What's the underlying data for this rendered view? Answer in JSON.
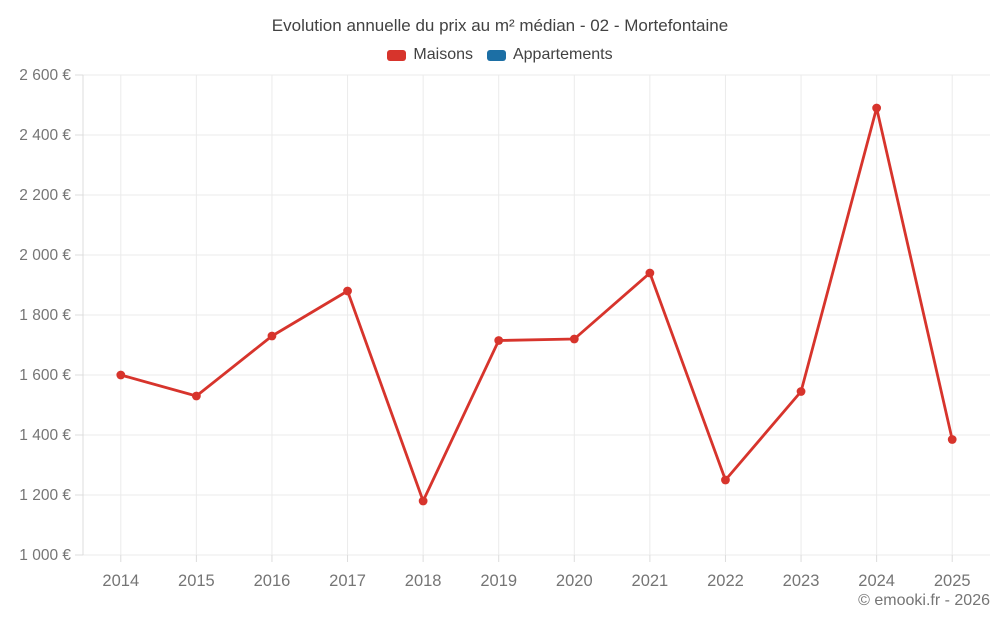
{
  "header": {
    "title": "Evolution annuelle du prix au m² médian - 02 - Mortefontaine"
  },
  "legend": {
    "items": [
      {
        "label": "Maisons",
        "color": "#d7342c"
      },
      {
        "label": "Appartements",
        "color": "#1c6fa5"
      }
    ]
  },
  "footer": {
    "credit": "© emooki.fr - 2026"
  },
  "colors": {
    "maisons": "#d7342c",
    "appartements": "#1c6fa5",
    "grid": "#ebebeb",
    "axis": "#dcdcdc",
    "tick_text": "#757575",
    "title_text": "#424242"
  },
  "chart_data": {
    "type": "line",
    "title": "Evolution annuelle du prix au m² médian - 02 - Mortefontaine",
    "categories": [
      "2014",
      "2015",
      "2016",
      "2017",
      "2018",
      "2019",
      "2020",
      "2021",
      "2022",
      "2023",
      "2024",
      "2025"
    ],
    "series": [
      {
        "name": "Maisons",
        "color": "#d7342c",
        "values": [
          1600,
          1530,
          1730,
          1880,
          1180,
          1715,
          1720,
          1940,
          1250,
          1545,
          2490,
          1385
        ]
      },
      {
        "name": "Appartements",
        "color": "#1c6fa5",
        "values": []
      }
    ],
    "xlabel": "",
    "ylabel": "",
    "ylim": [
      1000,
      2600
    ],
    "ytick_step": 200,
    "ytick_suffix": " €",
    "grid": true,
    "legend_position": "top",
    "marker": "circle"
  }
}
